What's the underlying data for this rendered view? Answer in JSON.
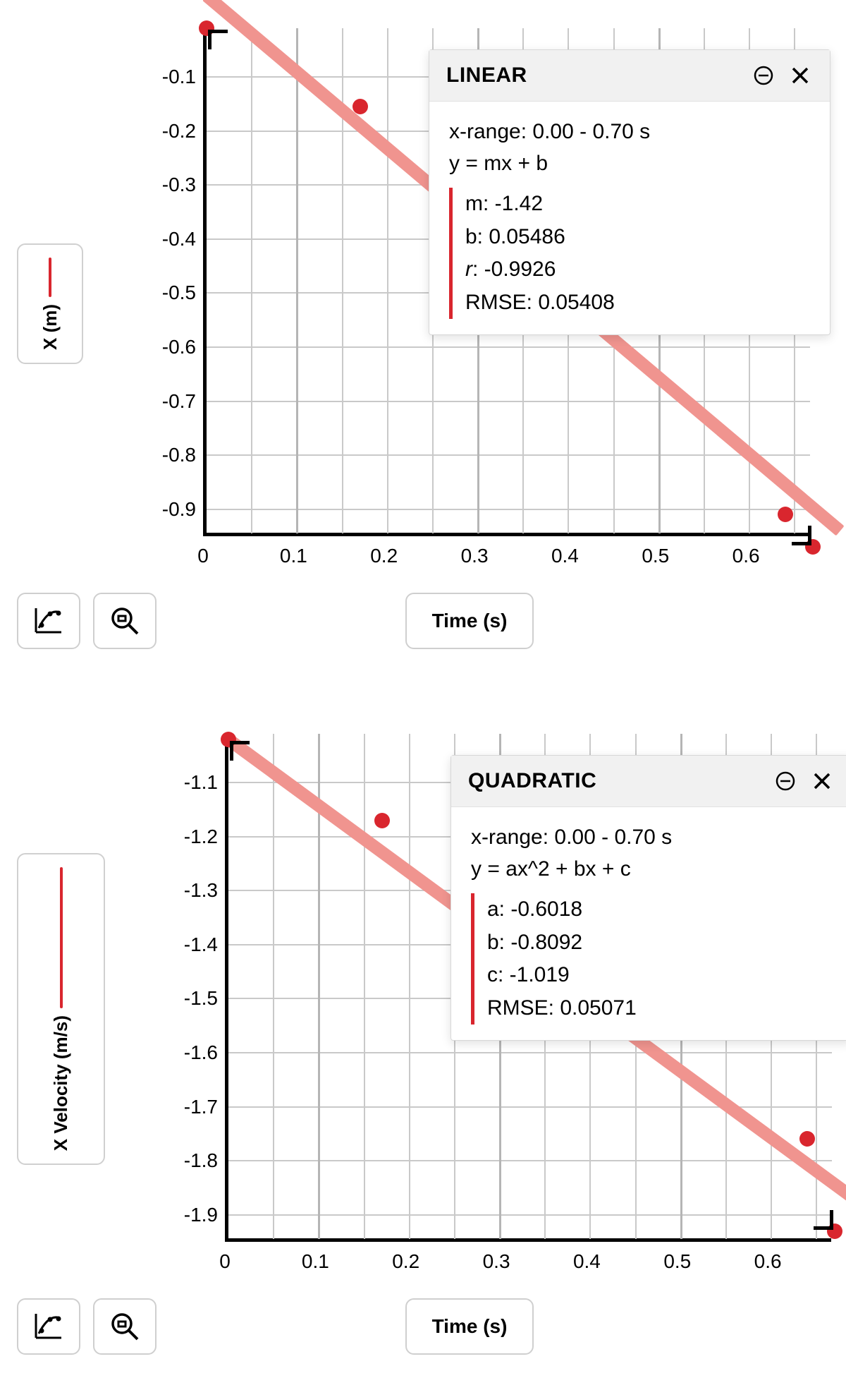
{
  "global": {
    "background_color": "#ffffff",
    "text_color": "#000000",
    "accent_color": "#d9262e",
    "fit_line_color": "#f0948f",
    "grid_color": "#c9c9c9",
    "axis_color": "#000000",
    "border_color": "#cfcfcf",
    "panel_bg": "#ffffff",
    "panel_header_bg": "#f1f1f1",
    "tick_fontsize": 28,
    "axis_label_fontsize": 26,
    "fit_title_fontsize": 30,
    "fit_body_fontsize": 30,
    "font_family": "-apple-system, Helvetica, Arial, sans-serif"
  },
  "chart1": {
    "type": "scatter",
    "fit_type": "linear",
    "y_axis_label": "X (m)",
    "x_axis_label": "Time (s)",
    "xlim": [
      0,
      0.67
    ],
    "ylim": [
      -0.95,
      -0.01
    ],
    "x_ticks": [
      0,
      0.1,
      0.2,
      0.3,
      0.4,
      0.5,
      0.6
    ],
    "y_ticks": [
      -0.1,
      -0.2,
      -0.3,
      -0.4,
      -0.5,
      -0.6,
      -0.7,
      -0.8,
      -0.9
    ],
    "x_tick_labels": [
      "0",
      "0.1",
      "0.2",
      "0.3",
      "0.4",
      "0.5",
      "0.6"
    ],
    "y_tick_labels": [
      "-0.1",
      "-0.2",
      "-0.3",
      "-0.4",
      "-0.5",
      "-0.6",
      "-0.7",
      "-0.8",
      "-0.9"
    ],
    "x_minor_lines": [
      0.05,
      0.15,
      0.25,
      0.35,
      0.45,
      0.55,
      0.65
    ],
    "x_thick_lines": [
      0.1,
      0.3,
      0.5
    ],
    "points": [
      {
        "x": 0.0,
        "y": -0.01
      },
      {
        "x": 0.17,
        "y": -0.155
      },
      {
        "x": 0.64,
        "y": -0.91
      },
      {
        "x": 0.67,
        "y": -0.97
      }
    ],
    "fit_line": {
      "x0": 0.0,
      "y0": 0.05,
      "x1": 0.7,
      "y1": -0.94
    },
    "fit_panel": {
      "title": "LINEAR",
      "xrange_label": "x-range: 0.00 - 0.70 s",
      "equation": "y = mx + b",
      "params": [
        {
          "label": "m",
          "value": "-1.42",
          "italic": false
        },
        {
          "label": "b",
          "value": "0.05486",
          "italic": false
        },
        {
          "label": "r",
          "value": "-0.9926",
          "italic": true
        },
        {
          "label": "RMSE",
          "value": "0.05408",
          "italic": false
        }
      ]
    }
  },
  "chart2": {
    "type": "scatter",
    "fit_type": "quadratic",
    "y_axis_label": "X Velocity (m/s)",
    "x_axis_label": "Time (s)",
    "xlim": [
      0,
      0.67
    ],
    "ylim": [
      -1.95,
      -1.01
    ],
    "x_ticks": [
      0,
      0.1,
      0.2,
      0.3,
      0.4,
      0.5,
      0.6
    ],
    "y_ticks": [
      -1.1,
      -1.2,
      -1.3,
      -1.4,
      -1.5,
      -1.6,
      -1.7,
      -1.8,
      -1.9
    ],
    "x_tick_labels": [
      "0",
      "0.1",
      "0.2",
      "0.3",
      "0.4",
      "0.5",
      "0.6"
    ],
    "y_tick_labels": [
      "-1.1",
      "-1.2",
      "-1.3",
      "-1.4",
      "-1.5",
      "-1.6",
      "-1.7",
      "-1.8",
      "-1.9"
    ],
    "x_minor_lines": [
      0.05,
      0.15,
      0.25,
      0.35,
      0.45,
      0.55,
      0.65
    ],
    "x_thick_lines": [
      0.1,
      0.3,
      0.5
    ],
    "points": [
      {
        "x": 0.0,
        "y": -1.02
      },
      {
        "x": 0.17,
        "y": -1.17
      },
      {
        "x": 0.64,
        "y": -1.76
      },
      {
        "x": 0.67,
        "y": -1.93
      }
    ],
    "fit_line": {
      "x0": 0.0,
      "y0": -1.02,
      "x1": 0.7,
      "y1": -1.88
    },
    "fit_panel": {
      "title": "QUADRATIC",
      "xrange_label": "x-range: 0.00 - 0.70 s",
      "equation": "y = ax^2 + bx + c",
      "params": [
        {
          "label": "a",
          "value": "-0.6018",
          "italic": false
        },
        {
          "label": "b",
          "value": "-0.8092",
          "italic": false
        },
        {
          "label": "c",
          "value": "-1.019",
          "italic": false
        },
        {
          "label": "RMSE",
          "value": "0.05071",
          "italic": false
        }
      ]
    }
  },
  "buttons": {
    "curve_fit_tooltip": "Curve Fit",
    "zoom_tooltip": "Zoom"
  }
}
